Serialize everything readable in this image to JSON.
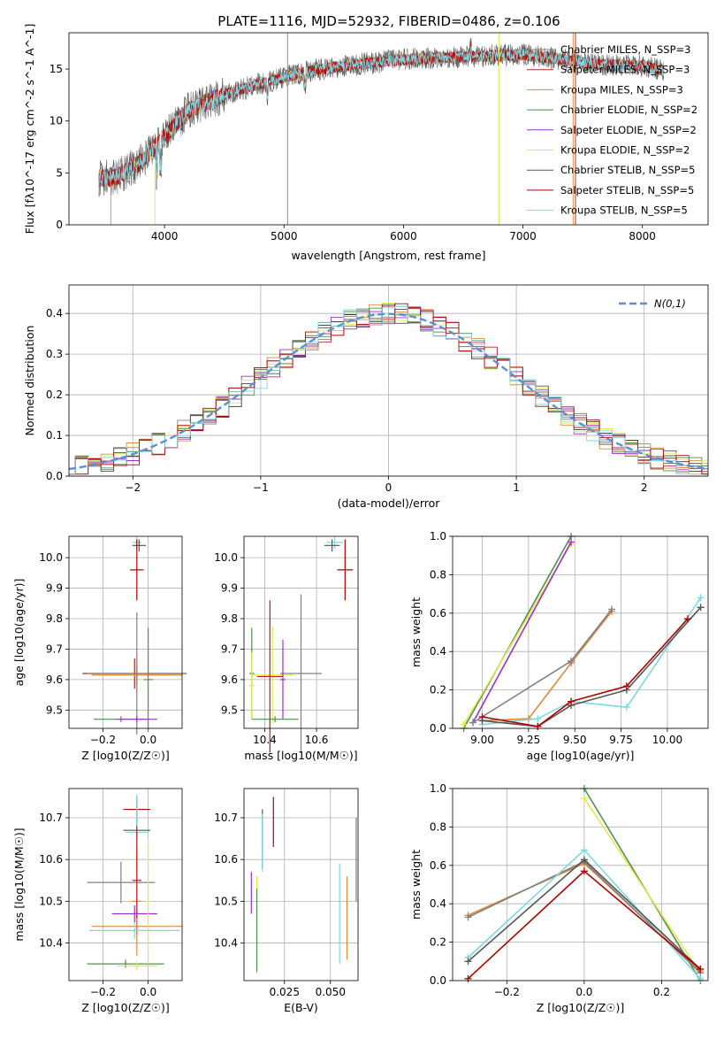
{
  "title": "PLATE=1116, MJD=52932, FIBERID=0486, z=0.106",
  "colors": [
    "#808080",
    "#b22222",
    "#e2873b",
    "#4f8f4f",
    "#9932cc",
    "#e6e64c",
    "#555555",
    "#b00000",
    "#7fd8e0"
  ],
  "legend_labels": [
    "Chabrier MILES, N_SSP=3",
    "Salpeter MILES, N_SSP=3",
    "Kroupa MILES, N_SSP=3",
    "Chabrier ELODIE, N_SSP=2",
    "Salpeter ELODIE, N_SSP=2",
    "Kroupa ELODIE, N_SSP=2",
    "Chabrier STELIB, N_SSP=5",
    "Salpeter STELIB, N_SSP=5",
    "Kroupa STELIB, N_SSP=5"
  ],
  "chart_data": [
    {
      "id": "spectrum",
      "type": "line",
      "xlabel": "wavelength [Angstrom, rest frame]",
      "ylabel": "Flux [fλ10^-17 erg cm^-2 s^-1 A^-1]",
      "xlim": [
        3200,
        8550
      ],
      "ylim": [
        0,
        18.5
      ],
      "xticks": [
        4000,
        5000,
        6000,
        7000,
        8000
      ],
      "yticks": [
        0,
        5,
        10,
        15
      ],
      "continuum": {
        "x": [
          3450,
          3600,
          3800,
          4000,
          4200,
          4500,
          4800,
          5000,
          5200,
          5500,
          5800,
          6000,
          6300,
          6600,
          7000,
          7300,
          7600,
          8000,
          8200
        ],
        "y": [
          4.5,
          4.6,
          6.0,
          8.5,
          11.0,
          12.5,
          13.6,
          14.2,
          14.8,
          15.3,
          15.7,
          15.9,
          16.1,
          16.2,
          16.4,
          16.0,
          15.5,
          15.3,
          14.8
        ]
      }
    },
    {
      "id": "residuals",
      "type": "histogram",
      "xlabel": "(data-model)/error",
      "ylabel": "Normed distribution",
      "xlim": [
        -2.5,
        2.5
      ],
      "ylim": [
        0,
        0.47
      ],
      "xticks": [
        -2,
        -1,
        0,
        1,
        2
      ],
      "yticks": [
        0.0,
        0.1,
        0.2,
        0.3,
        0.4
      ],
      "bin_width": 0.1,
      "normal_label": "N(0,1)"
    },
    {
      "id": "age-vs-Z",
      "type": "errorbar",
      "xlabel": "Z [log10(Z/Z☉)]",
      "ylabel": "age [log10(age/yr)]",
      "xlim": [
        -0.35,
        0.15
      ],
      "ylim": [
        9.44,
        10.07
      ],
      "xticks": [
        -0.2,
        0.0
      ],
      "yticks": [
        9.5,
        9.6,
        9.7,
        9.8,
        9.9,
        10.0
      ],
      "points": [
        {
          "x": -0.05,
          "xerr": 0.02,
          "y": 10.05,
          "yerr": 0.02,
          "c": 8
        },
        {
          "x": -0.04,
          "xerr": 0.03,
          "y": 10.04,
          "yerr": 0.02,
          "c": 6
        },
        {
          "x": -0.05,
          "xerr": 0.03,
          "y": 9.96,
          "yerr": 0.1,
          "c": 7
        },
        {
          "x": -0.06,
          "xerr": 0.23,
          "y": 9.62,
          "yerr": 0.05,
          "c": 1
        },
        {
          "x": -0.05,
          "xerr": 0.2,
          "y": 9.615,
          "yerr": 0.05,
          "c": 5
        },
        {
          "x": -0.05,
          "xerr": 0.2,
          "y": 9.615,
          "yerr": 0.03,
          "c": 2
        },
        {
          "x": -0.05,
          "xerr": 0.22,
          "y": 9.62,
          "yerr": 0.2,
          "c": 0
        },
        {
          "x": -0.12,
          "xerr": 0.12,
          "y": 9.47,
          "yerr": 0.01,
          "c": 3
        },
        {
          "x": -0.05,
          "xerr": 0.09,
          "y": 9.47,
          "yerr": 0.01,
          "c": 4
        },
        {
          "x": 0.0,
          "xerr": 0.02,
          "y": 9.6,
          "yerr": 0.17,
          "c": 3
        }
      ]
    },
    {
      "id": "age-vs-mass",
      "type": "errorbar",
      "xlabel": "mass [log10(M/M☉)]",
      "ylabel": "",
      "xlim": [
        10.32,
        10.76
      ],
      "ylim": [
        9.44,
        10.07
      ],
      "xticks": [
        10.4,
        10.6
      ],
      "yticks": [
        9.5,
        9.6,
        9.7,
        9.8,
        9.9,
        10.0
      ],
      "points": [
        {
          "x": 10.67,
          "xerr": 0.03,
          "y": 10.05,
          "yerr": 0.02,
          "c": 8
        },
        {
          "x": 10.66,
          "xerr": 0.03,
          "y": 10.04,
          "yerr": 0.02,
          "c": 6
        },
        {
          "x": 10.71,
          "xerr": 0.03,
          "y": 9.96,
          "yerr": 0.1,
          "c": 7
        },
        {
          "x": 10.54,
          "xerr": 0.08,
          "y": 9.62,
          "yerr": 0.26,
          "c": 0
        },
        {
          "x": 10.43,
          "xerr": 0.08,
          "y": 9.615,
          "yerr": 0.16,
          "c": 5
        },
        {
          "x": 10.47,
          "xerr": 0.01,
          "y": 9.6,
          "yerr": 0.13,
          "c": 4
        },
        {
          "x": 10.42,
          "xerr": 0.05,
          "y": 9.61,
          "yerr": 0.25,
          "c": 1
        },
        {
          "x": 10.35,
          "xerr": 0.01,
          "y": 9.62,
          "yerr": 0.15,
          "c": 3
        },
        {
          "x": 10.44,
          "xerr": 0.09,
          "y": 9.47,
          "yerr": 0.01,
          "c": 3
        },
        {
          "x": 10.35,
          "xerr": 0.01,
          "y": 9.58,
          "yerr": 0.11,
          "c": 5
        }
      ]
    },
    {
      "id": "mass-weight-vs-age",
      "type": "line",
      "xlabel": "age [log10(age/yr)]",
      "ylabel": "mass weight",
      "xlim": [
        8.84,
        10.22
      ],
      "ylim": [
        0,
        1.0
      ],
      "xticks": [
        9.0,
        9.25,
        9.5,
        9.75,
        10.0
      ],
      "yticks": [
        0.0,
        0.2,
        0.4,
        0.6,
        0.8,
        1.0
      ],
      "series": [
        {
          "c": 3,
          "x": [
            8.9,
            9.48
          ],
          "y": [
            0.0,
            1.0
          ]
        },
        {
          "c": 5,
          "x": [
            8.9,
            9.48
          ],
          "y": [
            0.02,
            0.96
          ]
        },
        {
          "c": 4,
          "x": [
            8.95,
            9.48
          ],
          "y": [
            0.03,
            0.97
          ]
        },
        {
          "c": 2,
          "x": [
            9.0,
            9.25,
            9.48,
            9.7
          ],
          "y": [
            0.04,
            0.05,
            0.34,
            0.61
          ]
        },
        {
          "c": 0,
          "x": [
            8.95,
            9.48,
            9.7
          ],
          "y": [
            0.03,
            0.35,
            0.62
          ]
        },
        {
          "c": 8,
          "x": [
            9.0,
            9.3,
            9.48,
            9.78,
            10.18
          ],
          "y": [
            0.02,
            0.05,
            0.14,
            0.11,
            0.68
          ]
        },
        {
          "c": 6,
          "x": [
            9.0,
            9.3,
            9.48,
            9.78,
            10.18
          ],
          "y": [
            0.04,
            0.01,
            0.12,
            0.2,
            0.63
          ]
        },
        {
          "c": 7,
          "x": [
            9.0,
            9.3,
            9.48,
            9.78,
            10.11
          ],
          "y": [
            0.06,
            0.01,
            0.14,
            0.22,
            0.57
          ]
        }
      ]
    },
    {
      "id": "mass-vs-Z",
      "type": "errorbar",
      "xlabel": "Z [log10(Z/Z☉)]",
      "ylabel": "mass [log10(M/M☉)]",
      "xlim": [
        -0.35,
        0.15
      ],
      "ylim": [
        10.31,
        10.77
      ],
      "xticks": [
        -0.2,
        0.0
      ],
      "yticks": [
        10.4,
        10.5,
        10.6,
        10.7
      ],
      "points": [
        {
          "x": -0.05,
          "xerr": 0.06,
          "y": 10.72,
          "yerr": 0.03,
          "c": 7
        },
        {
          "x": -0.05,
          "xerr": 0.06,
          "y": 10.67,
          "yerr": 0.02,
          "c": 6
        },
        {
          "x": -0.05,
          "xerr": 0.05,
          "y": 10.665,
          "yerr": 0.09,
          "c": 8
        },
        {
          "x": -0.12,
          "xerr": 0.15,
          "y": 10.545,
          "yerr": 0.05,
          "c": 0
        },
        {
          "x": -0.05,
          "xerr": 0.02,
          "y": 10.5,
          "yerr": 0.13,
          "c": 2
        },
        {
          "x": -0.05,
          "xerr": 0.02,
          "y": 10.55,
          "yerr": 0.13,
          "c": 1
        },
        {
          "x": -0.06,
          "xerr": 0.1,
          "y": 10.47,
          "yerr": 0.02,
          "c": 4
        },
        {
          "x": -0.05,
          "xerr": 0.2,
          "y": 10.44,
          "yerr": 0.02,
          "c": 2
        },
        {
          "x": -0.06,
          "xerr": 0.2,
          "y": 10.43,
          "yerr": 0.02,
          "c": 8
        },
        {
          "x": -0.1,
          "xerr": 0.17,
          "y": 10.35,
          "yerr": 0.01,
          "c": 3
        },
        {
          "x": 0.0,
          "xerr": 0.01,
          "y": 10.5,
          "yerr": 0.15,
          "c": 5
        },
        {
          "x": -0.05,
          "xerr": 0.09,
          "y": 10.345,
          "yerr": 0.01,
          "c": 5
        }
      ]
    },
    {
      "id": "mass-vs-ebv",
      "type": "errorbar",
      "xlabel": "E(B-V)",
      "ylabel": "",
      "xlim": [
        0.003,
        0.065
      ],
      "ylim": [
        10.31,
        10.77
      ],
      "xticks": [
        0.025,
        0.05
      ],
      "yticks": [
        10.4,
        10.5,
        10.6,
        10.7
      ],
      "points": [
        {
          "x": 0.019,
          "y": 10.69,
          "yerr": 0.06,
          "c": 7
        },
        {
          "x": 0.013,
          "y": 10.65,
          "yerr": 0.07,
          "c": 6
        },
        {
          "x": 0.013,
          "y": 10.64,
          "yerr": 0.07,
          "c": 8
        },
        {
          "x": 0.007,
          "y": 10.52,
          "yerr": 0.05,
          "c": 4
        },
        {
          "x": 0.01,
          "y": 10.45,
          "yerr": 0.11,
          "c": 5
        },
        {
          "x": 0.01,
          "y": 10.43,
          "yerr": 0.1,
          "c": 3
        },
        {
          "x": 0.055,
          "y": 10.47,
          "yerr": 0.12,
          "c": 8
        },
        {
          "x": 0.059,
          "y": 10.46,
          "yerr": 0.1,
          "c": 2
        },
        {
          "x": 0.064,
          "y": 10.6,
          "yerr": 0.1,
          "c": 0
        }
      ]
    },
    {
      "id": "mass-weight-vs-Z",
      "type": "line",
      "xlabel": "Z [log10(Z/Z☉)]",
      "ylabel": "mass weight",
      "xlim": [
        -0.34,
        0.32
      ],
      "ylim": [
        0,
        1.0
      ],
      "xticks": [
        -0.2,
        0.0,
        0.2
      ],
      "yticks": [
        0.0,
        0.2,
        0.4,
        0.6,
        0.8,
        1.0
      ],
      "series": [
        {
          "c": 3,
          "x": [
            0.0,
            0.3
          ],
          "y": [
            1.0,
            0.0
          ]
        },
        {
          "c": 5,
          "x": [
            0.0,
            0.3
          ],
          "y": [
            0.95,
            0.04
          ]
        },
        {
          "c": 2,
          "x": [
            -0.3,
            0.0,
            0.3
          ],
          "y": [
            0.34,
            0.61,
            0.05
          ]
        },
        {
          "c": 0,
          "x": [
            -0.3,
            0.0,
            0.3
          ],
          "y": [
            0.33,
            0.62,
            0.04
          ]
        },
        {
          "c": 8,
          "x": [
            -0.3,
            0.0,
            0.3
          ],
          "y": [
            0.12,
            0.68,
            0.01
          ]
        },
        {
          "c": 6,
          "x": [
            -0.3,
            0.0,
            0.3
          ],
          "y": [
            0.1,
            0.63,
            0.06
          ]
        },
        {
          "c": 7,
          "x": [
            -0.3,
            0.0,
            0.3
          ],
          "y": [
            0.01,
            0.57,
            0.06
          ]
        }
      ]
    }
  ]
}
